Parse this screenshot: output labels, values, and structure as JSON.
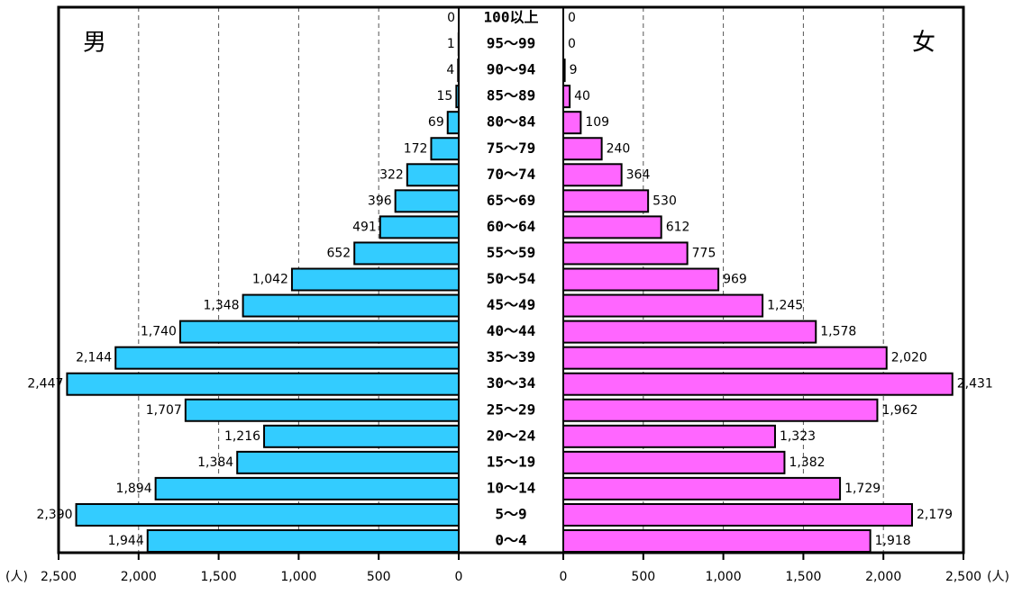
{
  "chart_data": {
    "type": "pyramid",
    "categories": [
      "100以上",
      "95～99",
      "90～94",
      "85～89",
      "80～84",
      "75～79",
      "70～74",
      "65～69",
      "60～64",
      "55～59",
      "50～54",
      "45～49",
      "40～44",
      "35～39",
      "30～34",
      "25～29",
      "20～24",
      "15～19",
      "10～14",
      "5～9",
      "0～4"
    ],
    "series": [
      {
        "name": "男",
        "color": "#33ccff",
        "side": "left",
        "values": [
          0,
          1,
          4,
          15,
          69,
          172,
          322,
          396,
          491,
          652,
          1042,
          1348,
          1740,
          2144,
          2447,
          1707,
          1216,
          1384,
          1894,
          2390,
          1944
        ],
        "value_labels": [
          "0",
          "1",
          "4",
          "15",
          "69",
          "172",
          "322",
          "396",
          "491",
          "652",
          "1,042",
          "1,348",
          "1,740",
          "2,144",
          "2,447",
          "1,707",
          "1,216",
          "1,384",
          "1,894",
          "2,390",
          "1,944"
        ]
      },
      {
        "name": "女",
        "color": "#ff66ff",
        "side": "right",
        "values": [
          0,
          0,
          9,
          40,
          109,
          240,
          364,
          530,
          612,
          775,
          969,
          1245,
          1578,
          2020,
          2431,
          1962,
          1323,
          1382,
          1729,
          2179,
          1918
        ],
        "value_labels": [
          "0",
          "0",
          "9",
          "40",
          "109",
          "240",
          "364",
          "530",
          "612",
          "775",
          "969",
          "1,245",
          "1,578",
          "2,020",
          "2,431",
          "1,962",
          "1,323",
          "1,382",
          "1,729",
          "2,179",
          "1,918"
        ]
      }
    ],
    "xlim": [
      0,
      2500
    ],
    "xticks": [
      0,
      500,
      {
        "value": 1000,
        "label": "1,000"
      },
      {
        "value": 1500,
        "label": "1,500"
      },
      {
        "value": 2000,
        "label": "2,000"
      },
      {
        "value": 2500,
        "label": "2,500"
      }
    ],
    "unit": "(人)",
    "grid": true
  }
}
